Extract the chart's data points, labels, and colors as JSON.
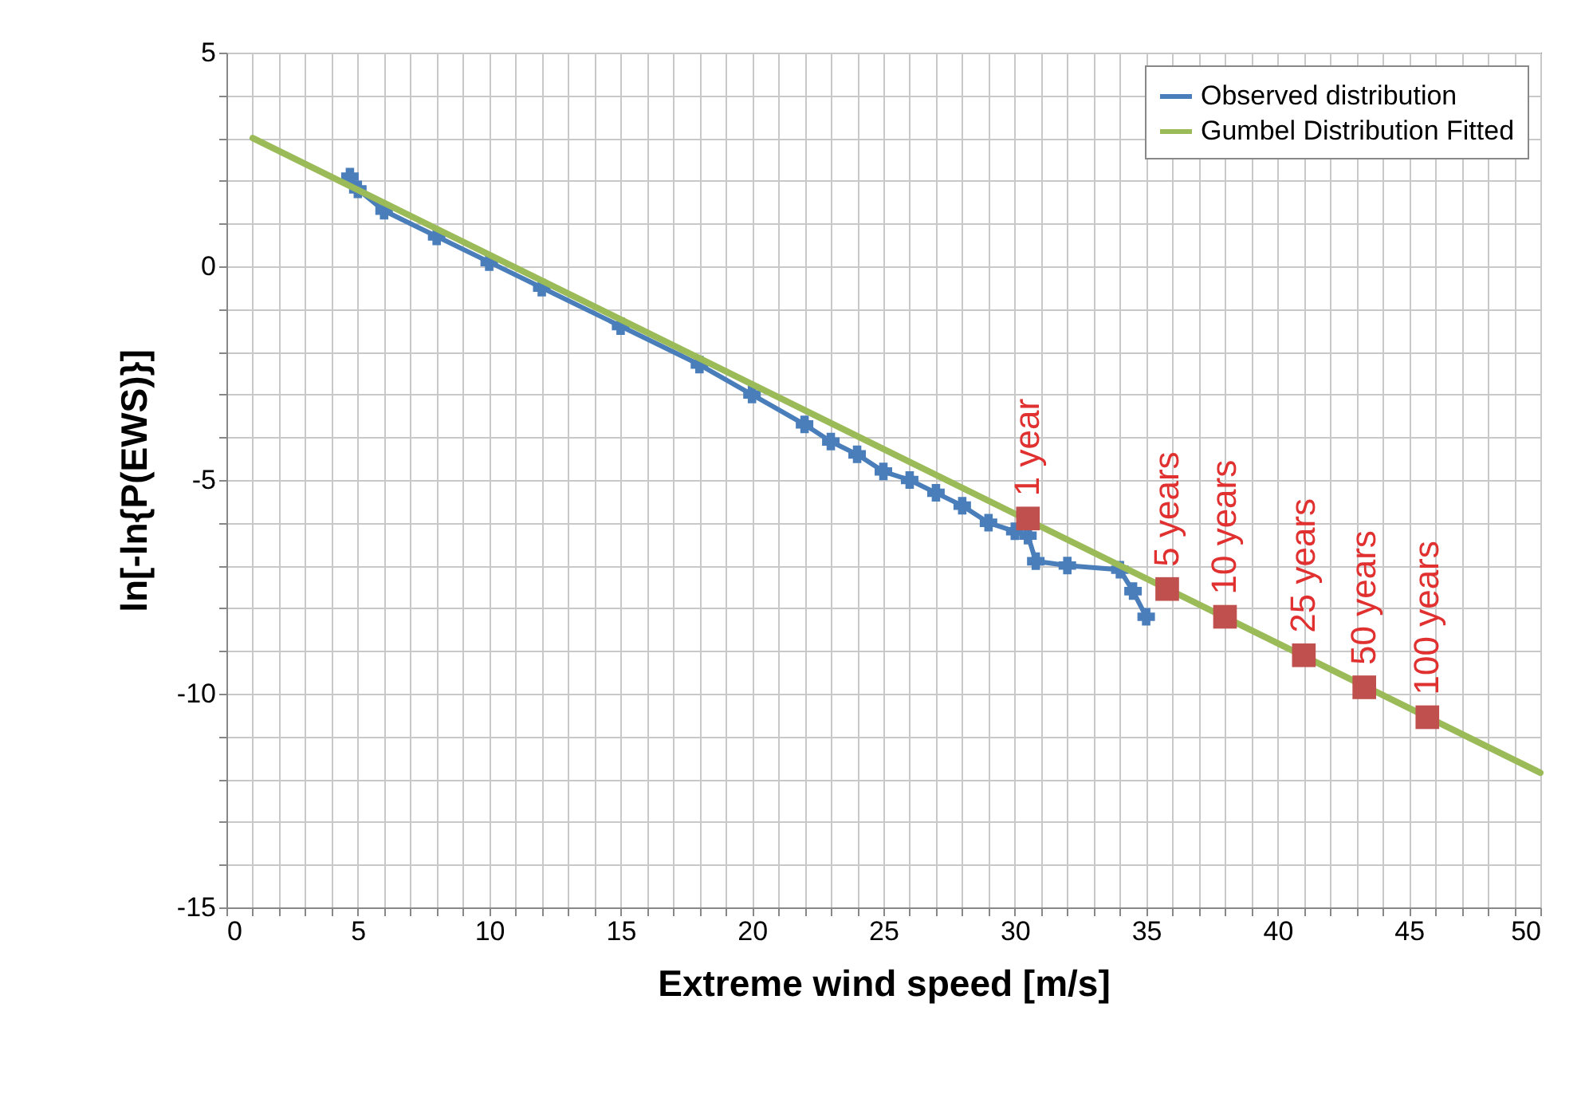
{
  "chart_data": {
    "type": "line",
    "xlabel": "Extreme wind speed [m/s]",
    "ylabel": "ln[-ln{P(EWS)}]",
    "xlim": [
      0,
      50
    ],
    "ylim": [
      -15,
      5
    ],
    "xticks": [
      0,
      {
        "value": 1,
        "label": null
      },
      {
        "value": 2,
        "label": null
      },
      {
        "value": 3,
        "label": null
      },
      {
        "value": 4,
        "label": null
      },
      5,
      {
        "value": 6,
        "label": null
      },
      {
        "value": 7,
        "label": null
      },
      {
        "value": 8,
        "label": null
      },
      {
        "value": 9,
        "label": null
      },
      10,
      {
        "value": 11,
        "label": null
      },
      {
        "value": 12,
        "label": null
      },
      {
        "value": 13,
        "label": null
      },
      {
        "value": 14,
        "label": null
      },
      15,
      {
        "value": 16,
        "label": null
      },
      {
        "value": 17,
        "label": null
      },
      {
        "value": 18,
        "label": null
      },
      {
        "value": 19,
        "label": null
      },
      20,
      {
        "value": 21,
        "label": null
      },
      {
        "value": 22,
        "label": null
      },
      {
        "value": 23,
        "label": null
      },
      {
        "value": 24,
        "label": null
      },
      25,
      {
        "value": 26,
        "label": null
      },
      {
        "value": 27,
        "label": null
      },
      {
        "value": 28,
        "label": null
      },
      {
        "value": 29,
        "label": null
      },
      30,
      {
        "value": 31,
        "label": null
      },
      {
        "value": 32,
        "label": null
      },
      {
        "value": 33,
        "label": null
      },
      {
        "value": 34,
        "label": null
      },
      35,
      {
        "value": 36,
        "label": null
      },
      {
        "value": 37,
        "label": null
      },
      {
        "value": 38,
        "label": null
      },
      {
        "value": 39,
        "label": null
      },
      40,
      {
        "value": 41,
        "label": null
      },
      {
        "value": 42,
        "label": null
      },
      {
        "value": 43,
        "label": null
      },
      {
        "value": 44,
        "label": null
      },
      45,
      {
        "value": 46,
        "label": null
      },
      {
        "value": 47,
        "label": null
      },
      {
        "value": 48,
        "label": null
      },
      {
        "value": 49,
        "label": null
      },
      50
    ],
    "yticks": [
      5,
      {
        "value": 4,
        "label": null
      },
      {
        "value": 3,
        "label": null
      },
      {
        "value": 2,
        "label": null
      },
      {
        "value": 1,
        "label": null
      },
      0,
      {
        "value": -1,
        "label": null
      },
      {
        "value": -2,
        "label": null
      },
      {
        "value": -3,
        "label": null
      },
      {
        "value": -4,
        "label": null
      },
      -5,
      {
        "value": -6,
        "label": null
      },
      {
        "value": -7,
        "label": null
      },
      {
        "value": -8,
        "label": null
      },
      {
        "value": -9,
        "label": null
      },
      -10,
      {
        "value": -11,
        "label": null
      },
      {
        "value": -12,
        "label": null
      },
      {
        "value": -13,
        "label": null
      },
      {
        "value": -14,
        "label": null
      },
      -15
    ],
    "grid": true,
    "legend": "top right",
    "series": [
      {
        "name": "Observed distribution",
        "type": "line",
        "marker": "cross",
        "color": "#4a7ebb",
        "x": [
          4.7,
          5,
          6,
          8,
          10,
          12,
          15,
          18,
          20,
          22,
          23,
          24,
          25,
          26,
          27,
          28,
          29,
          30,
          30.5,
          30.8,
          32,
          34,
          34.5,
          35
        ],
        "values": [
          2.1,
          1.8,
          1.3,
          0.7,
          0.1,
          -0.5,
          -1.4,
          -2.3,
          -3.0,
          -3.7,
          -4.1,
          -4.4,
          -4.8,
          -5.0,
          -5.3,
          -5.6,
          -6.0,
          -6.2,
          -6.3,
          -6.9,
          -7.0,
          -7.1,
          -7.6,
          -8.2
        ]
      },
      {
        "name": "Gumbel Distribution Fitted",
        "type": "line",
        "color": "#9bbb59",
        "x": [
          1,
          50
        ],
        "values": [
          3,
          -11.85
        ]
      },
      {
        "type": "scatter",
        "marker": "square",
        "color": "#c0504d",
        "x": [
          30.5,
          35.8,
          38,
          41,
          43.3,
          45.7
        ],
        "values": [
          -5.9,
          -7.55,
          -8.2,
          -9.1,
          -9.85,
          -10.55
        ]
      }
    ],
    "annotations": [
      {
        "text": "1 year",
        "x": 30.5,
        "y": -5.9
      },
      {
        "text": "5 years",
        "x": 35.8,
        "y": -7.55
      },
      {
        "text": "10 years",
        "x": 38,
        "y": -8.2
      },
      {
        "text": "25 years",
        "x": 41,
        "y": -9.1
      },
      {
        "text": "50 years",
        "x": 43.3,
        "y": -9.85
      },
      {
        "text": "100 years",
        "x": 45.7,
        "y": -10.55
      }
    ]
  }
}
